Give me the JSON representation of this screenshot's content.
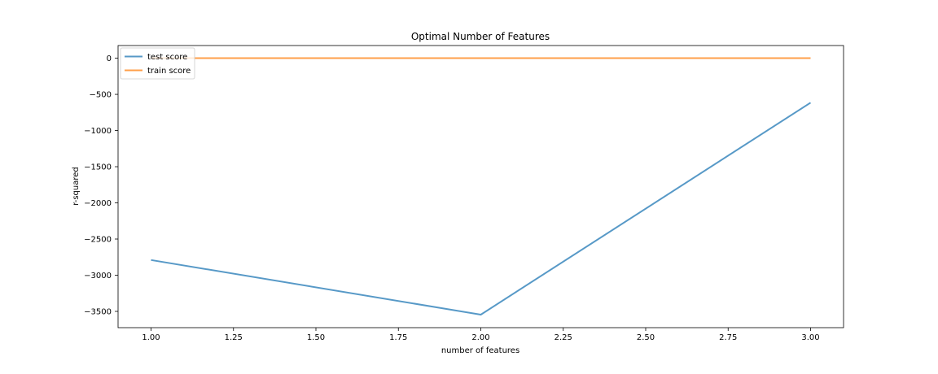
{
  "chart_data": {
    "type": "line",
    "title": "Optimal Number of Features",
    "xlabel": "number of features",
    "ylabel": "r-squared",
    "xlim": [
      0.9,
      3.1
    ],
    "ylim": [
      -3725,
      175
    ],
    "x_ticks": [
      1.0,
      1.25,
      1.5,
      1.75,
      2.0,
      2.25,
      2.5,
      2.75,
      3.0
    ],
    "x_tick_labels": [
      "1.00",
      "1.25",
      "1.50",
      "1.75",
      "2.00",
      "2.25",
      "2.50",
      "2.75",
      "3.00"
    ],
    "y_ticks": [
      0,
      -500,
      -1000,
      -1500,
      -2000,
      -2500,
      -3000,
      -3500
    ],
    "y_tick_labels": [
      "0",
      "−500",
      "−1000",
      "−1500",
      "−2000",
      "−2500",
      "−3000",
      "−3500"
    ],
    "grid": false,
    "legend_position": "top-left",
    "series": [
      {
        "name": "test score",
        "color": "#1f77b4",
        "x": [
          1,
          2,
          3
        ],
        "y": [
          -2790,
          -3545,
          -615
        ]
      },
      {
        "name": "train score",
        "color": "#ff7f0e",
        "x": [
          1,
          2,
          3
        ],
        "y": [
          0.4,
          0.6,
          0.8
        ]
      }
    ]
  }
}
